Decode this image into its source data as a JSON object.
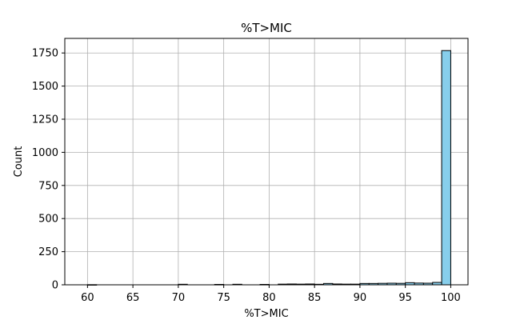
{
  "chart_data": {
    "type": "bar",
    "title": "%T>MIC",
    "xlabel": "%T>MIC",
    "ylabel": "Count",
    "xlim": [
      57.5,
      101.9
    ],
    "ylim": [
      0,
      1860
    ],
    "xticks": [
      60,
      65,
      70,
      75,
      80,
      85,
      90,
      95,
      100
    ],
    "yticks": [
      0,
      250,
      500,
      750,
      1000,
      1250,
      1500,
      1750
    ],
    "grid": true,
    "bar_color": "#87ceeb",
    "edge_color": "#000000",
    "bins": [
      {
        "x0": 60,
        "x1": 61,
        "value": 1
      },
      {
        "x0": 61,
        "x1": 62,
        "value": 0
      },
      {
        "x0": 62,
        "x1": 63,
        "value": 0
      },
      {
        "x0": 63,
        "x1": 64,
        "value": 0
      },
      {
        "x0": 64,
        "x1": 65,
        "value": 0
      },
      {
        "x0": 65,
        "x1": 66,
        "value": 0
      },
      {
        "x0": 66,
        "x1": 67,
        "value": 0
      },
      {
        "x0": 67,
        "x1": 68,
        "value": 0
      },
      {
        "x0": 68,
        "x1": 69,
        "value": 0
      },
      {
        "x0": 69,
        "x1": 70,
        "value": 0
      },
      {
        "x0": 70,
        "x1": 71,
        "value": 4
      },
      {
        "x0": 71,
        "x1": 72,
        "value": 0
      },
      {
        "x0": 72,
        "x1": 73,
        "value": 0
      },
      {
        "x0": 73,
        "x1": 74,
        "value": 0
      },
      {
        "x0": 74,
        "x1": 75,
        "value": 3
      },
      {
        "x0": 75,
        "x1": 76,
        "value": 0
      },
      {
        "x0": 76,
        "x1": 77,
        "value": 4
      },
      {
        "x0": 77,
        "x1": 78,
        "value": 0
      },
      {
        "x0": 78,
        "x1": 79,
        "value": 0
      },
      {
        "x0": 79,
        "x1": 80,
        "value": 3
      },
      {
        "x0": 80,
        "x1": 81,
        "value": 0
      },
      {
        "x0": 81,
        "x1": 82,
        "value": 5
      },
      {
        "x0": 82,
        "x1": 83,
        "value": 6
      },
      {
        "x0": 83,
        "x1": 84,
        "value": 5
      },
      {
        "x0": 84,
        "x1": 85,
        "value": 6
      },
      {
        "x0": 85,
        "x1": 86,
        "value": 4
      },
      {
        "x0": 86,
        "x1": 87,
        "value": 10
      },
      {
        "x0": 87,
        "x1": 88,
        "value": 6
      },
      {
        "x0": 88,
        "x1": 89,
        "value": 5
      },
      {
        "x0": 89,
        "x1": 90,
        "value": 5
      },
      {
        "x0": 90,
        "x1": 91,
        "value": 10
      },
      {
        "x0": 91,
        "x1": 92,
        "value": 10
      },
      {
        "x0": 92,
        "x1": 93,
        "value": 11
      },
      {
        "x0": 93,
        "x1": 94,
        "value": 12
      },
      {
        "x0": 94,
        "x1": 95,
        "value": 11
      },
      {
        "x0": 95,
        "x1": 96,
        "value": 16
      },
      {
        "x0": 96,
        "x1": 97,
        "value": 13
      },
      {
        "x0": 97,
        "x1": 98,
        "value": 12
      },
      {
        "x0": 98,
        "x1": 99,
        "value": 18
      },
      {
        "x0": 99,
        "x1": 100,
        "value": 1768
      }
    ]
  }
}
